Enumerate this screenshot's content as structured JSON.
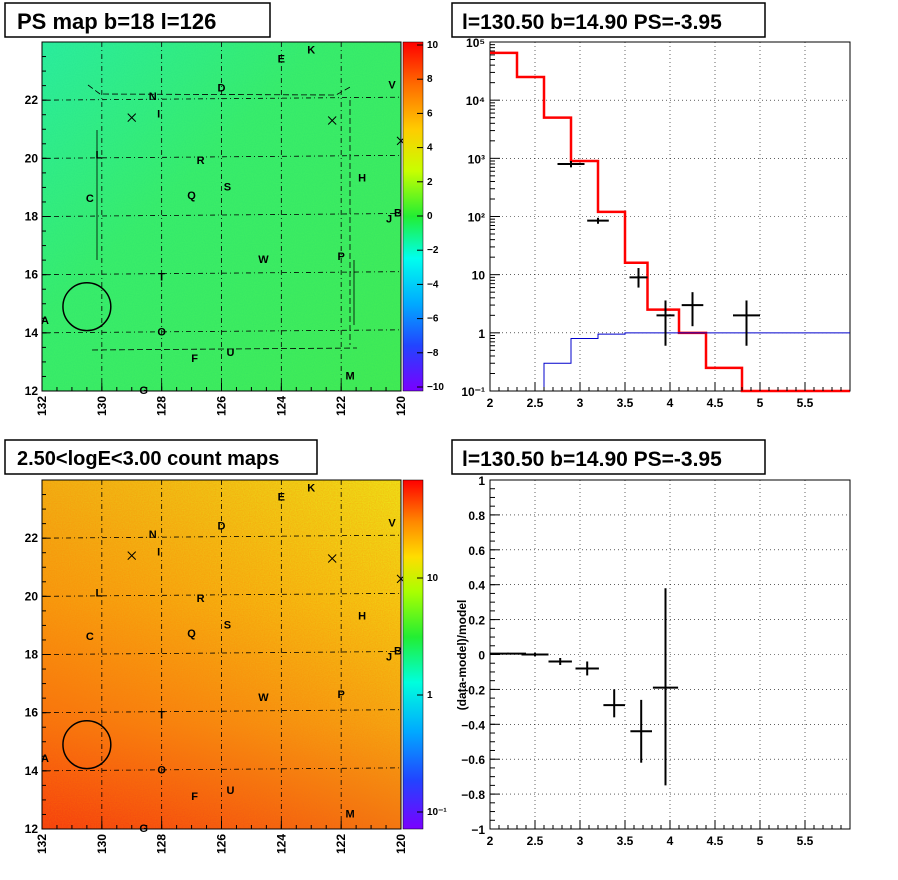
{
  "panels": {
    "ps_map_title": "PS map b=18 l=126",
    "count_map_title": "2.50<logE<3.00 count maps",
    "spectrum_title": "l=130.50 b=14.90 PS=-3.95",
    "residual_title": "l=130.50 b=14.90 PS=-3.95"
  },
  "maps": {
    "x_ticks": [
      "132",
      "130",
      "128",
      "126",
      "124",
      "122",
      "120"
    ],
    "y_ticks": [
      "12",
      "14",
      "16",
      "18",
      "20",
      "22"
    ],
    "ps_colorbar_ticks": [
      "10",
      "8",
      "6",
      "4",
      "2",
      "0",
      "−2",
      "−4",
      "−6",
      "−8",
      "−10"
    ],
    "count_colorbar_ticks": [
      "10",
      "1",
      "10⁻¹"
    ],
    "sources": [
      {
        "label": "K",
        "l": 123.0,
        "b": 23.6
      },
      {
        "label": "E",
        "l": 124.0,
        "b": 23.3
      },
      {
        "label": "V",
        "l": 120.3,
        "b": 22.4
      },
      {
        "label": "D",
        "l": 126.0,
        "b": 22.3
      },
      {
        "label": "N",
        "l": 128.3,
        "b": 22.0
      },
      {
        "label": "I",
        "l": 128.1,
        "b": 21.4
      },
      {
        "label": "L",
        "l": 130.1,
        "b": 20.0
      },
      {
        "label": "R",
        "l": 126.7,
        "b": 19.8
      },
      {
        "label": "H",
        "l": 121.3,
        "b": 19.2
      },
      {
        "label": "S",
        "l": 125.8,
        "b": 18.9
      },
      {
        "label": "Q",
        "l": 127.0,
        "b": 18.6
      },
      {
        "label": "C",
        "l": 130.4,
        "b": 18.5
      },
      {
        "label": "B",
        "l": 120.1,
        "b": 18.0
      },
      {
        "label": "J",
        "l": 120.4,
        "b": 17.8
      },
      {
        "label": "W",
        "l": 124.6,
        "b": 16.4
      },
      {
        "label": "P",
        "l": 122.0,
        "b": 16.5
      },
      {
        "label": "T",
        "l": 128.0,
        "b": 15.8
      },
      {
        "label": "A",
        "l": 131.9,
        "b": 14.3
      },
      {
        "label": "O",
        "l": 128.0,
        "b": 13.9
      },
      {
        "label": "U",
        "l": 125.7,
        "b": 13.2
      },
      {
        "label": "F",
        "l": 126.9,
        "b": 13.0
      },
      {
        "label": "M",
        "l": 121.7,
        "b": 12.4
      },
      {
        "label": "G",
        "l": 128.6,
        "b": 11.9
      }
    ],
    "crosses": [
      {
        "l": 129.0,
        "b": 21.4
      },
      {
        "l": 122.3,
        "b": 21.3
      },
      {
        "l": 120.0,
        "b": 20.6
      }
    ],
    "circle": {
      "l": 130.5,
      "b": 14.9,
      "r": 0.8
    }
  },
  "chart_data": [
    {
      "type": "line",
      "title": "l=130.50 b=14.90 PS=-3.95",
      "xlim": [
        2.0,
        6.0
      ],
      "ylim": [
        0.1,
        100000
      ],
      "log_y": true,
      "grid": true,
      "x_ticks": [
        "2",
        "2.5",
        "3",
        "3.5",
        "4",
        "4.5",
        "5",
        "5.5"
      ],
      "y_ticks": [
        "10⁻¹",
        "1",
        "10",
        "10²",
        "10³",
        "10⁴",
        "10⁵"
      ],
      "series": [
        {
          "color": "#ff0000",
          "edges": [
            2.0,
            2.3,
            2.6,
            2.9,
            3.2,
            3.5,
            3.75,
            4.1,
            4.4,
            4.8,
            6.0
          ],
          "values": [
            65000,
            25000,
            5000,
            900,
            120,
            16,
            2.5,
            1.0,
            0.25,
            0.1
          ]
        },
        {
          "color": "#0000cc",
          "edges": [
            2.6,
            2.9,
            3.2,
            3.5,
            6.0
          ],
          "values": [
            0.3,
            0.8,
            0.95,
            1.0
          ]
        }
      ],
      "points": [
        {
          "x": 2.9,
          "y": 800,
          "xerr": 0.15,
          "ylo": 700,
          "yhi": 900
        },
        {
          "x": 3.2,
          "y": 85,
          "xerr": 0.12,
          "ylo": 75,
          "yhi": 95
        },
        {
          "x": 3.65,
          "y": 9,
          "xerr": 0.1,
          "ylo": 6,
          "yhi": 13
        },
        {
          "x": 3.95,
          "y": 2,
          "xerr": 0.1,
          "ylo": 0.6,
          "yhi": 3.6
        },
        {
          "x": 4.25,
          "y": 3,
          "xerr": 0.12,
          "ylo": 1.3,
          "yhi": 5
        },
        {
          "x": 4.85,
          "y": 2,
          "xerr": 0.15,
          "ylo": 0.6,
          "yhi": 3.6
        }
      ]
    },
    {
      "type": "scatter",
      "title": "l=130.50 b=14.90 PS=-3.95",
      "ylabel": "(data-model)/model",
      "xlim": [
        2.0,
        6.0
      ],
      "ylim": [
        -1.0,
        1.0
      ],
      "grid": true,
      "x_ticks": [
        "2",
        "2.5",
        "3",
        "3.5",
        "4",
        "4.5",
        "5",
        "5.5"
      ],
      "y_ticks": [
        "−1",
        "−0.8",
        "−0.6",
        "−0.4",
        "−0.2",
        "0",
        "0.2",
        "0.4",
        "0.6",
        "0.8",
        "1"
      ],
      "points": [
        {
          "x": 2.2,
          "y": 0.005,
          "xerr": 0.2,
          "ylo": 0.0,
          "yhi": 0.01
        },
        {
          "x": 2.5,
          "y": 0.0,
          "xerr": 0.15,
          "ylo": -0.01,
          "yhi": 0.01
        },
        {
          "x": 2.78,
          "y": -0.04,
          "xerr": 0.13,
          "ylo": -0.06,
          "yhi": -0.02
        },
        {
          "x": 3.08,
          "y": -0.08,
          "xerr": 0.13,
          "ylo": -0.12,
          "yhi": -0.04
        },
        {
          "x": 3.38,
          "y": -0.29,
          "xerr": 0.12,
          "ylo": -0.36,
          "yhi": -0.2
        },
        {
          "x": 3.68,
          "y": -0.44,
          "xerr": 0.12,
          "ylo": -0.62,
          "yhi": -0.26
        },
        {
          "x": 3.95,
          "y": -0.19,
          "xerr": 0.14,
          "ylo": -0.75,
          "yhi": 0.38
        }
      ]
    }
  ]
}
